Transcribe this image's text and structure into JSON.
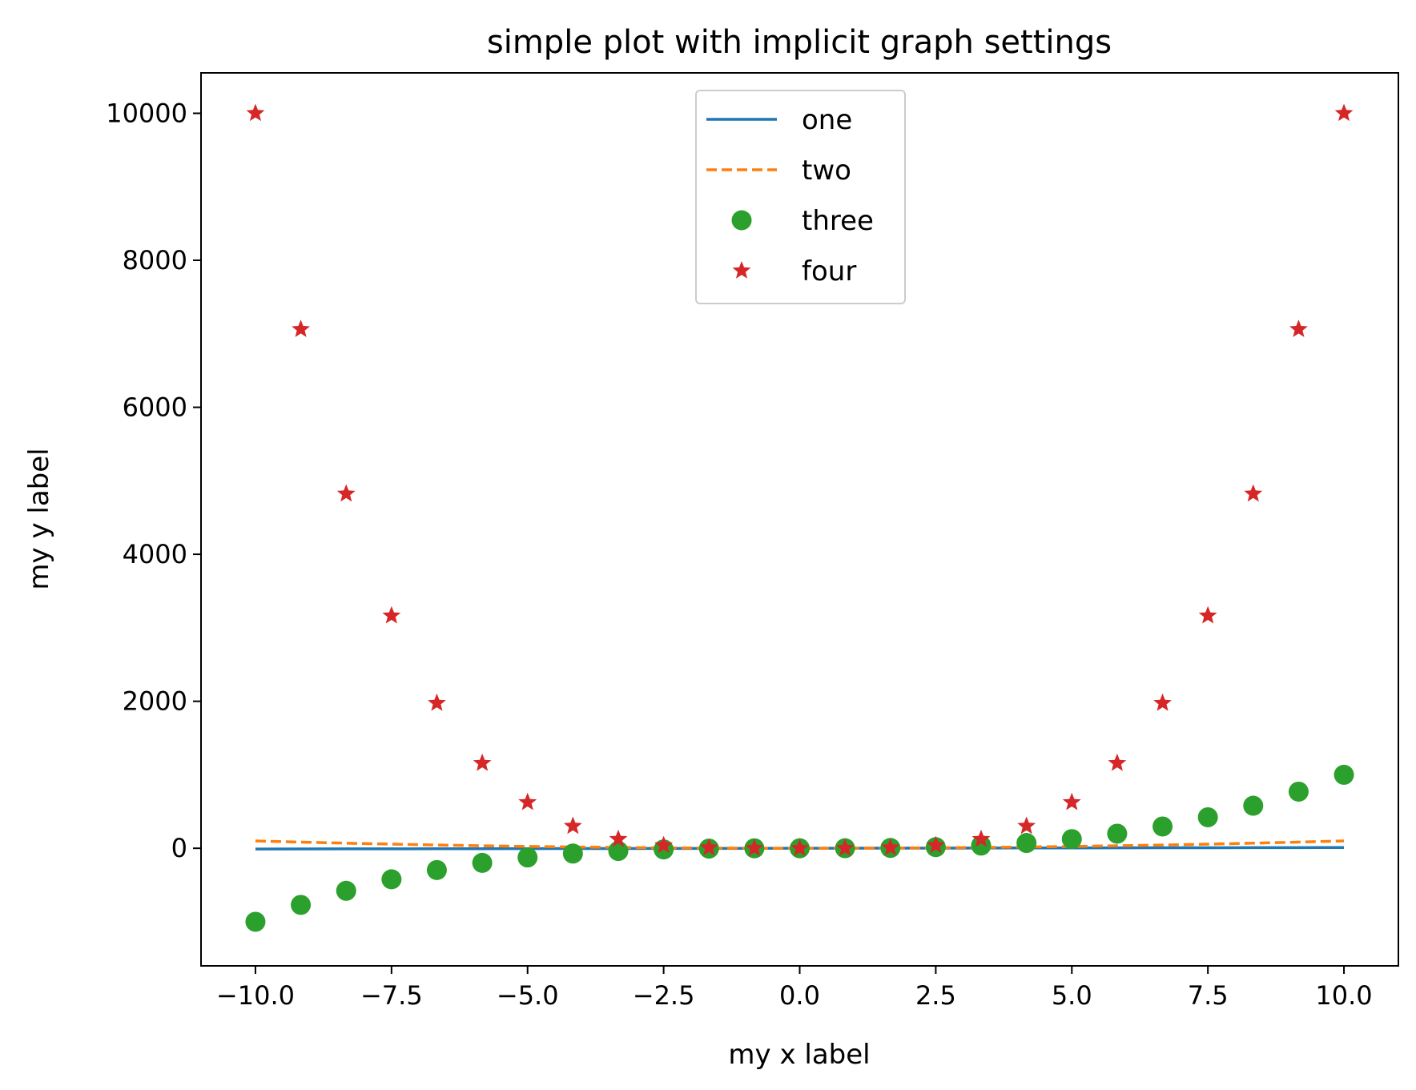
{
  "chart_data": {
    "type": "line",
    "title": "simple plot with implicit graph settings",
    "xlabel": "my x label",
    "ylabel": "my y label",
    "xlim": [
      -11.0,
      11.0
    ],
    "ylim": [
      -1600,
      10550
    ],
    "xticks": [
      -10.0,
      -7.5,
      -5.0,
      -2.5,
      0.0,
      2.5,
      5.0,
      7.5,
      10.0
    ],
    "xtick_labels": [
      "−10.0",
      "−7.5",
      "−5.0",
      "−2.5",
      "0.0",
      "2.5",
      "5.0",
      "7.5",
      "10.0"
    ],
    "yticks": [
      0,
      2000,
      4000,
      6000,
      8000,
      10000
    ],
    "ytick_labels": [
      "0",
      "2000",
      "4000",
      "6000",
      "8000",
      "10000"
    ],
    "grid": false,
    "legend_position": "upper center",
    "x": [
      -10.0,
      -9.167,
      -8.333,
      -7.5,
      -6.667,
      -5.833,
      -5.0,
      -4.167,
      -3.333,
      -2.5,
      -1.667,
      -0.833,
      0.0,
      0.833,
      1.667,
      2.5,
      3.333,
      4.167,
      5.0,
      5.833,
      6.667,
      7.5,
      8.333,
      9.167,
      10.0
    ],
    "series": [
      {
        "name": "one",
        "style": "solid-line",
        "color": "#1f77b4",
        "values": [
          -10.0,
          -9.167,
          -8.333,
          -7.5,
          -6.667,
          -5.833,
          -5.0,
          -4.167,
          -3.333,
          -2.5,
          -1.667,
          -0.833,
          0.0,
          0.833,
          1.667,
          2.5,
          3.333,
          4.167,
          5.0,
          5.833,
          6.667,
          7.5,
          8.333,
          9.167,
          10.0
        ]
      },
      {
        "name": "two",
        "style": "dashed-line",
        "color": "#ff7f0e",
        "values": [
          100.0,
          84.03,
          69.44,
          56.25,
          44.44,
          34.03,
          25.0,
          17.36,
          11.11,
          6.25,
          2.78,
          0.69,
          0.0,
          0.69,
          2.78,
          6.25,
          11.11,
          17.36,
          25.0,
          34.03,
          44.44,
          56.25,
          69.44,
          84.03,
          100.0
        ]
      },
      {
        "name": "three",
        "style": "circle-markers",
        "color": "#2ca02c",
        "values": [
          -1000.0,
          -770.3,
          -578.7,
          -421.9,
          -296.3,
          -198.5,
          -125.0,
          -72.3,
          -37.0,
          -15.6,
          -4.6,
          -0.6,
          0.0,
          0.6,
          4.6,
          15.6,
          37.0,
          72.3,
          125.0,
          198.5,
          296.3,
          421.9,
          578.7,
          770.3,
          1000.0
        ]
      },
      {
        "name": "four",
        "style": "star-markers",
        "color": "#d62728",
        "values": [
          10000.0,
          7061.0,
          4822.5,
          3164.1,
          1975.3,
          1157.8,
          625.0,
          301.4,
          123.5,
          39.1,
          7.7,
          0.5,
          0.0,
          0.5,
          7.7,
          39.1,
          123.5,
          301.4,
          625.0,
          1157.8,
          1975.3,
          3164.1,
          4822.5,
          7061.0,
          10000.0
        ]
      }
    ]
  }
}
